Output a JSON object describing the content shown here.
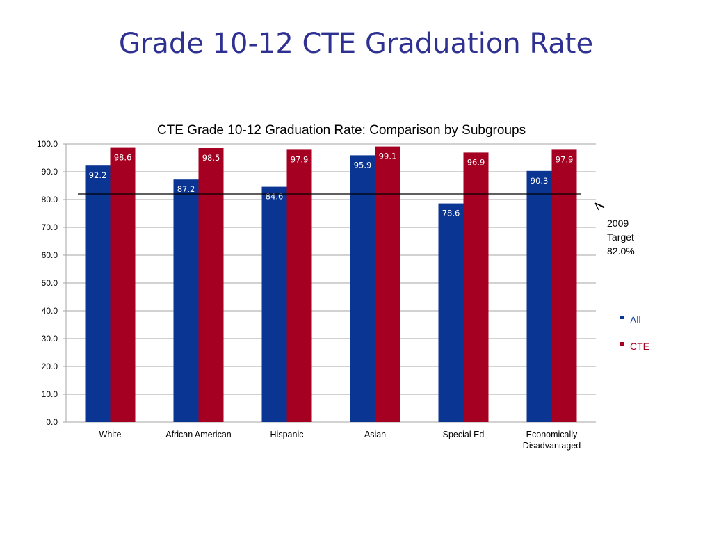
{
  "slide": {
    "title": "Grade 10-12 CTE Graduation Rate"
  },
  "colors": {
    "title": "#2e3192",
    "all": "#0b3592",
    "cte": "#a50021",
    "grid": "#a6a6a6",
    "target_line": "#000000"
  },
  "chart_data": {
    "type": "bar",
    "title": "CTE Grade 10-12 Graduation Rate: Comparison by Subgroups",
    "xlabel": "",
    "ylabel": "",
    "ylim": [
      0,
      100
    ],
    "yticks": [
      "0.0",
      "10.0",
      "20.0",
      "30.0",
      "40.0",
      "50.0",
      "60.0",
      "70.0",
      "80.0",
      "90.0",
      "100.0"
    ],
    "grid": true,
    "legend_position": "right",
    "categories": [
      "White",
      "African American",
      "Hispanic",
      "Asian",
      "Special Ed",
      "Economically Disadvantaged"
    ],
    "series": [
      {
        "name": "All",
        "values": [
          92.2,
          87.2,
          84.6,
          95.9,
          78.6,
          90.3
        ],
        "labels": [
          "92.2",
          "87.2",
          "84.6",
          "95.9",
          "78.6",
          "90.3"
        ]
      },
      {
        "name": "CTE",
        "values": [
          98.6,
          98.5,
          97.9,
          99.1,
          96.9,
          97.9
        ],
        "labels": [
          "98.6",
          "98.5",
          "97.9",
          "99.1",
          "96.9",
          "97.9"
        ]
      }
    ],
    "reference_line": {
      "value": 82.0,
      "label_lines": [
        "2009",
        "Target",
        "82.0%"
      ]
    }
  }
}
